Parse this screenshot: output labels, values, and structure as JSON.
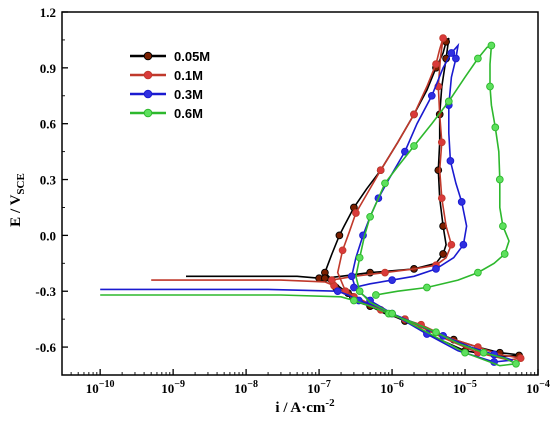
{
  "chart_data": {
    "type": "line",
    "title": "",
    "x_scale": "log",
    "xlim": [
      3e-11,
      0.0001
    ],
    "ylim": [
      -0.75,
      1.2
    ],
    "xticks": [
      {
        "value": 1e-10,
        "base": "10",
        "exp": "−10"
      },
      {
        "value": 1e-09,
        "base": "10",
        "exp": "−9"
      },
      {
        "value": 1e-08,
        "base": "10",
        "exp": "−8"
      },
      {
        "value": 1e-07,
        "base": "10",
        "exp": "−7"
      },
      {
        "value": 1e-06,
        "base": "10",
        "exp": "−6"
      },
      {
        "value": 1e-05,
        "base": "10",
        "exp": "−5"
      },
      {
        "value": 0.0001,
        "base": "10",
        "exp": "−4"
      }
    ],
    "yticks": [
      {
        "value": 1.2,
        "label": "1.2"
      },
      {
        "value": 0.9,
        "label": "0.9"
      },
      {
        "value": 0.6,
        "label": "0.6"
      },
      {
        "value": 0.3,
        "label": "0.3"
      },
      {
        "value": 0.0,
        "label": "0.0"
      },
      {
        "value": -0.3,
        "label": "-0.3"
      },
      {
        "value": -0.6,
        "label": "-0.6"
      }
    ],
    "xlabel": "i / A·cm",
    "xlabel_sup": "-2",
    "ylabel": "E / V",
    "ylabel_sub": "SCE",
    "grid": false,
    "legend": {
      "position": "upper-left",
      "entries": [
        "0.05M",
        "0.1M",
        "0.3M",
        "0.6M"
      ]
    },
    "series": [
      {
        "name": "0.05M",
        "color": "#000000",
        "fill": "#7a1f00",
        "points": [
          [
            1.5e-09,
            -0.22
          ],
          [
            5e-08,
            -0.22
          ],
          [
            1e-07,
            -0.23
          ],
          [
            1.3e-07,
            -0.24
          ],
          [
            1.7e-07,
            -0.28
          ],
          [
            2.2e-07,
            -0.3
          ],
          [
            2.9e-07,
            -0.33
          ],
          [
            3.5e-07,
            -0.36
          ],
          [
            5e-07,
            -0.38
          ],
          [
            8e-07,
            -0.42
          ],
          [
            1.5e-06,
            -0.45
          ],
          [
            3e-06,
            -0.5
          ],
          [
            7e-06,
            -0.56
          ],
          [
            1.5e-05,
            -0.6
          ],
          [
            3e-05,
            -0.63
          ],
          [
            5e-05,
            -0.64
          ],
          [
            5.5e-05,
            -0.645
          ],
          [
            3e-05,
            -0.65
          ],
          [
            1e-05,
            -0.62
          ],
          [
            4e-06,
            -0.55
          ],
          [
            1.5e-06,
            -0.46
          ],
          [
            5e-07,
            -0.38
          ],
          [
            2.5e-07,
            -0.31
          ],
          [
            1.8e-07,
            -0.27
          ],
          [
            1.2e-07,
            -0.2
          ],
          [
            1.5e-07,
            -0.1
          ],
          [
            1.9e-07,
            0.0
          ],
          [
            2.2e-07,
            0.05
          ],
          [
            3e-07,
            0.15
          ],
          [
            4.5e-07,
            0.25
          ],
          [
            7e-07,
            0.35
          ],
          [
            1.2e-06,
            0.5
          ],
          [
            2e-06,
            0.65
          ],
          [
            3e-06,
            0.78
          ],
          [
            4e-06,
            0.9
          ],
          [
            5e-06,
            0.98
          ],
          [
            5.5e-06,
            1.04
          ],
          [
            6e-06,
            1.06
          ],
          [
            5.5e-06,
            0.95
          ],
          [
            4.8e-06,
            0.8
          ],
          [
            4.5e-06,
            0.65
          ],
          [
            4.5e-06,
            0.5
          ],
          [
            4.3e-06,
            0.35
          ],
          [
            4.5e-06,
            0.2
          ],
          [
            5e-06,
            0.05
          ],
          [
            5.5e-06,
            -0.05
          ],
          [
            5e-06,
            -0.1
          ],
          [
            4e-06,
            -0.15
          ],
          [
            2e-06,
            -0.18
          ],
          [
            1e-06,
            -0.19
          ],
          [
            5e-07,
            -0.2
          ],
          [
            2e-07,
            -0.22
          ],
          [
            1.2e-07,
            -0.23
          ]
        ]
      },
      {
        "name": "0.1M",
        "color": "#c0392b",
        "fill": "#d93a3a",
        "points": [
          [
            5e-10,
            -0.24
          ],
          [
            3e-08,
            -0.24
          ],
          [
            1.2e-07,
            -0.25
          ],
          [
            1.6e-07,
            -0.27
          ],
          [
            2.2e-07,
            -0.3
          ],
          [
            3e-07,
            -0.33
          ],
          [
            4.5e-07,
            -0.37
          ],
          [
            7e-07,
            -0.4
          ],
          [
            1.2e-06,
            -0.44
          ],
          [
            2.5e-06,
            -0.48
          ],
          [
            6e-06,
            -0.55
          ],
          [
            1.5e-05,
            -0.6
          ],
          [
            3e-05,
            -0.64
          ],
          [
            5.8e-05,
            -0.66
          ],
          [
            4e-05,
            -0.67
          ],
          [
            1.5e-05,
            -0.63
          ],
          [
            5e-06,
            -0.55
          ],
          [
            1.5e-06,
            -0.45
          ],
          [
            5e-07,
            -0.37
          ],
          [
            2.3e-07,
            -0.3
          ],
          [
            1.8e-07,
            -0.2
          ],
          [
            2.1e-07,
            -0.08
          ],
          [
            2.6e-07,
            0.02
          ],
          [
            3.2e-07,
            0.12
          ],
          [
            4.5e-07,
            0.22
          ],
          [
            7e-07,
            0.35
          ],
          [
            1.2e-06,
            0.5
          ],
          [
            2e-06,
            0.65
          ],
          [
            3e-06,
            0.8
          ],
          [
            4e-06,
            0.92
          ],
          [
            4.5e-06,
            1.0
          ],
          [
            5e-06,
            1.06
          ],
          [
            4.6e-06,
            0.95
          ],
          [
            4.3e-06,
            0.8
          ],
          [
            4.5e-06,
            0.65
          ],
          [
            4.8e-06,
            0.5
          ],
          [
            4.5e-06,
            0.35
          ],
          [
            4.8e-06,
            0.2
          ],
          [
            5.5e-06,
            0.05
          ],
          [
            6.5e-06,
            -0.05
          ],
          [
            5.5e-06,
            -0.12
          ],
          [
            4e-06,
            -0.16
          ],
          [
            2e-06,
            -0.18
          ],
          [
            8e-07,
            -0.2
          ],
          [
            3e-07,
            -0.22
          ],
          [
            1.5e-07,
            -0.24
          ]
        ]
      },
      {
        "name": "0.3M",
        "color": "#1a1ad0",
        "fill": "#2f2fe0",
        "points": [
          [
            1e-10,
            -0.29
          ],
          [
            2e-08,
            -0.29
          ],
          [
            1.8e-07,
            -0.3
          ],
          [
            2.5e-07,
            -0.32
          ],
          [
            3.5e-07,
            -0.35
          ],
          [
            6e-07,
            -0.38
          ],
          [
            1e-06,
            -0.42
          ],
          [
            2e-06,
            -0.47
          ],
          [
            5e-06,
            -0.54
          ],
          [
            1.2e-05,
            -0.6
          ],
          [
            2.5e-05,
            -0.64
          ],
          [
            4.5e-05,
            -0.67
          ],
          [
            2.5e-05,
            -0.68
          ],
          [
            8e-06,
            -0.62
          ],
          [
            3e-06,
            -0.53
          ],
          [
            1e-06,
            -0.42
          ],
          [
            5e-07,
            -0.35
          ],
          [
            3.2e-07,
            -0.29
          ],
          [
            2.8e-07,
            -0.22
          ],
          [
            3.2e-07,
            -0.12
          ],
          [
            4e-07,
            0.0
          ],
          [
            5e-07,
            0.1
          ],
          [
            6.5e-07,
            0.2
          ],
          [
            9e-07,
            0.3
          ],
          [
            1.5e-06,
            0.45
          ],
          [
            2.2e-06,
            0.6
          ],
          [
            3.5e-06,
            0.75
          ],
          [
            5e-06,
            0.9
          ],
          [
            6.5e-06,
            0.98
          ],
          [
            8e-06,
            1.02
          ],
          [
            7.5e-06,
            0.95
          ],
          [
            6.5e-06,
            0.85
          ],
          [
            6e-06,
            0.7
          ],
          [
            6e-06,
            0.55
          ],
          [
            6.3e-06,
            0.4
          ],
          [
            7.5e-06,
            0.28
          ],
          [
            9e-06,
            0.18
          ],
          [
            1.05e-05,
            0.05
          ],
          [
            9.5e-06,
            -0.05
          ],
          [
            7e-06,
            -0.12
          ],
          [
            4e-06,
            -0.18
          ],
          [
            2e-06,
            -0.22
          ],
          [
            1e-06,
            -0.24
          ],
          [
            5e-07,
            -0.26
          ],
          [
            3e-07,
            -0.28
          ]
        ]
      },
      {
        "name": "0.6M",
        "color": "#2db82d",
        "fill": "#5de05d",
        "points": [
          [
            1e-10,
            -0.32
          ],
          [
            3e-08,
            -0.32
          ],
          [
            2e-07,
            -0.33
          ],
          [
            3e-07,
            -0.35
          ],
          [
            5e-07,
            -0.38
          ],
          [
            9e-07,
            -0.42
          ],
          [
            2e-06,
            -0.47
          ],
          [
            4e-06,
            -0.52
          ],
          [
            8e-06,
            -0.58
          ],
          [
            1.8e-05,
            -0.63
          ],
          [
            3.5e-05,
            -0.66
          ],
          [
            5e-05,
            -0.69
          ],
          [
            3e-05,
            -0.7
          ],
          [
            1e-05,
            -0.63
          ],
          [
            3e-06,
            -0.52
          ],
          [
            1e-06,
            -0.42
          ],
          [
            5e-07,
            -0.36
          ],
          [
            3.6e-07,
            -0.3
          ],
          [
            3.2e-07,
            -0.22
          ],
          [
            3.6e-07,
            -0.12
          ],
          [
            4.2e-07,
            0.0
          ],
          [
            5e-07,
            0.1
          ],
          [
            6.5e-07,
            0.2
          ],
          [
            8e-07,
            0.28
          ],
          [
            1.2e-06,
            0.37
          ],
          [
            2e-06,
            0.48
          ],
          [
            3.5e-06,
            0.6
          ],
          [
            6e-06,
            0.72
          ],
          [
            1e-05,
            0.85
          ],
          [
            1.5e-05,
            0.95
          ],
          [
            2e-05,
            1.01
          ],
          [
            2.3e-05,
            1.02
          ],
          [
            2.2e-05,
            0.92
          ],
          [
            2.2e-05,
            0.8
          ],
          [
            2.3e-05,
            0.7
          ],
          [
            2.6e-05,
            0.58
          ],
          [
            2.9e-05,
            0.45
          ],
          [
            3e-05,
            0.3
          ],
          [
            3e-05,
            0.15
          ],
          [
            3.3e-05,
            0.05
          ],
          [
            4e-05,
            -0.03
          ],
          [
            3.5e-05,
            -0.1
          ],
          [
            2.5e-05,
            -0.15
          ],
          [
            1.5e-05,
            -0.2
          ],
          [
            8e-06,
            -0.24
          ],
          [
            3e-06,
            -0.28
          ],
          [
            1.2e-06,
            -0.3
          ],
          [
            6e-07,
            -0.32
          ]
        ]
      }
    ]
  }
}
